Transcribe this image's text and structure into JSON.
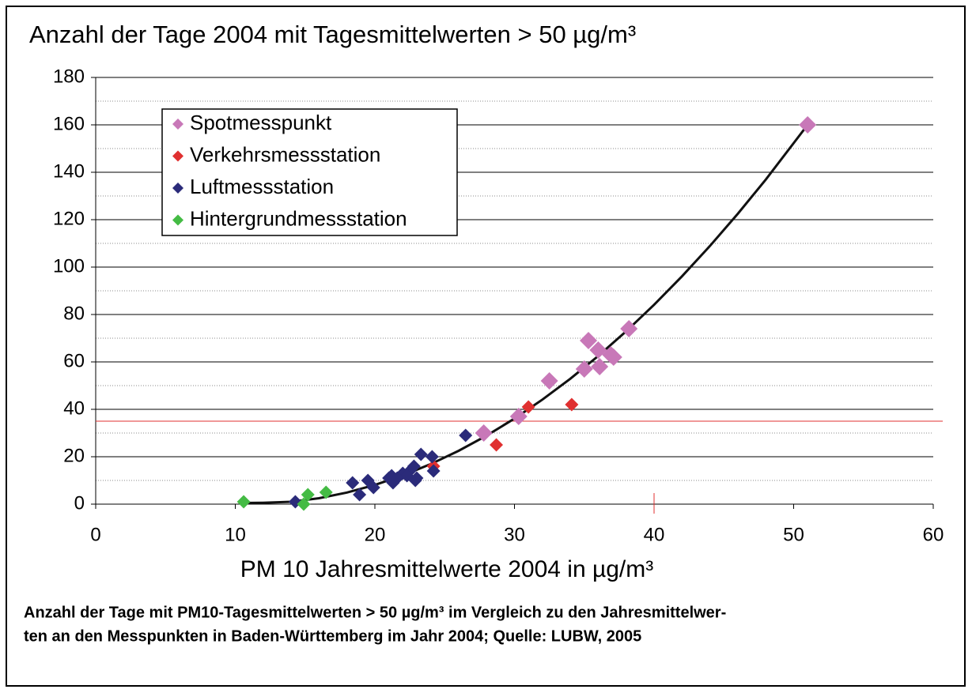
{
  "chart_data": {
    "type": "scatter",
    "title": "Anzahl der Tage 2004 mit Tagesmittelwerten > 50 µg/m³",
    "x_label": "PM 10 Jahresmittelwerte 2004 in µg/m³",
    "caption": [
      "Anzahl der Tage mit PM10-Tagesmittelwerten > 50 µg/m³ im Vergleich zu den Jahresmittelwer-",
      "ten an den Messpunkten in Baden-Württemberg im Jahr 2004; Quelle: LUBW, 2005"
    ],
    "xlim": [
      0,
      60
    ],
    "xticks": [
      0,
      10,
      20,
      30,
      40,
      50,
      60
    ],
    "ylim": [
      0,
      180
    ],
    "yticks": [
      0,
      20,
      40,
      60,
      80,
      100,
      120,
      140,
      160,
      180
    ],
    "y_minor_ticks": [
      10,
      30,
      50,
      70,
      90,
      110,
      130,
      150,
      170
    ],
    "grid": true,
    "legend": "upper left",
    "series": [
      {
        "name": "Spotmesspunkt",
        "color": "#c878b8",
        "x": [
          51,
          38.2,
          35.3,
          35,
          36,
          36.1,
          36.9,
          37.1,
          32.5,
          30.3,
          27.8
        ],
        "values": [
          160,
          74,
          69,
          57,
          65,
          58,
          63,
          62,
          52,
          37,
          30
        ]
      },
      {
        "name": "Verkehrsmessstation",
        "color": "#e03030",
        "x": [
          31,
          34.1,
          28.7,
          24.2
        ],
        "values": [
          41,
          42,
          25,
          16
        ]
      },
      {
        "name": "Luftmessstation",
        "color": "#2b2b7a",
        "x": [
          26.5,
          23.3,
          24.1,
          24.2,
          22.8,
          22.5,
          22,
          22.3,
          21.6,
          21.2,
          21,
          21.3,
          22.9,
          23,
          19.9,
          19.5,
          18.9,
          18.4,
          14.3
        ],
        "values": [
          29,
          21,
          20,
          14,
          16,
          14,
          13,
          12,
          11,
          12,
          11,
          9,
          10,
          11,
          7,
          10,
          4,
          9,
          1
        ]
      },
      {
        "name": "Hintergrundmessstation",
        "color": "#44bb44",
        "x": [
          10.6,
          15.2,
          14.9,
          16.5
        ],
        "values": [
          1,
          4,
          0,
          5
        ]
      }
    ],
    "trendline": {
      "color": "#111111",
      "x": [
        10.6,
        12,
        14,
        16,
        18,
        20,
        22,
        24,
        26,
        28,
        30,
        32,
        34,
        36,
        38,
        40,
        42,
        44,
        46,
        48,
        51
      ],
      "values": [
        0.5,
        0.6,
        1,
        2.5,
        4.9,
        8.1,
        12.1,
        16.9,
        22.5,
        28.9,
        36.1,
        44.1,
        52.9,
        62.5,
        72.9,
        84.1,
        96.1,
        108.9,
        122.5,
        136.9,
        160
      ]
    },
    "reference_y": 35,
    "reference_x": 40,
    "reference_color": "#e03030"
  }
}
